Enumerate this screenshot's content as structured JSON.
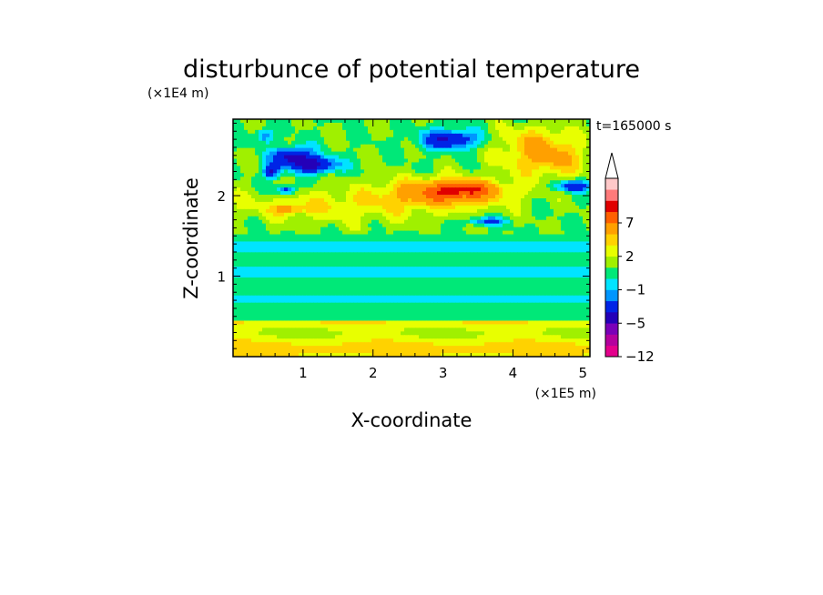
{
  "chart_data": {
    "type": "heatmap",
    "title": "disturbunce of potential temperature",
    "xlabel": "X-coordinate",
    "ylabel": "Z-coordinate",
    "x_unit": "(×1E5 m)",
    "y_unit": "(×1E4 m)",
    "time_label": "t=165000 s",
    "xlim": [
      0,
      5.1
    ],
    "ylim": [
      0,
      2.95
    ],
    "x_ticks": [
      "1",
      "2",
      "3",
      "4",
      "5"
    ],
    "y_ticks": [
      "1",
      "2"
    ],
    "colorbar": {
      "levels": [
        -12,
        -9,
        -7,
        -5,
        -3,
        -2,
        -1,
        0,
        1,
        2,
        3,
        5,
        7,
        8,
        9
      ],
      "labels": [
        "-12",
        "-5",
        "-1",
        "2",
        "7"
      ],
      "colors": [
        "#e4008c",
        "#b4009e",
        "#7a00b8",
        "#2400b8",
        "#0024e6",
        "#0096ff",
        "#00e4ff",
        "#00e878",
        "#a0f000",
        "#e8ff00",
        "#ffd200",
        "#ffa000",
        "#ff6000",
        "#e00000",
        "#ff7a7a",
        "#ffc8c8"
      ],
      "extend": "max"
    },
    "grid": false
  }
}
